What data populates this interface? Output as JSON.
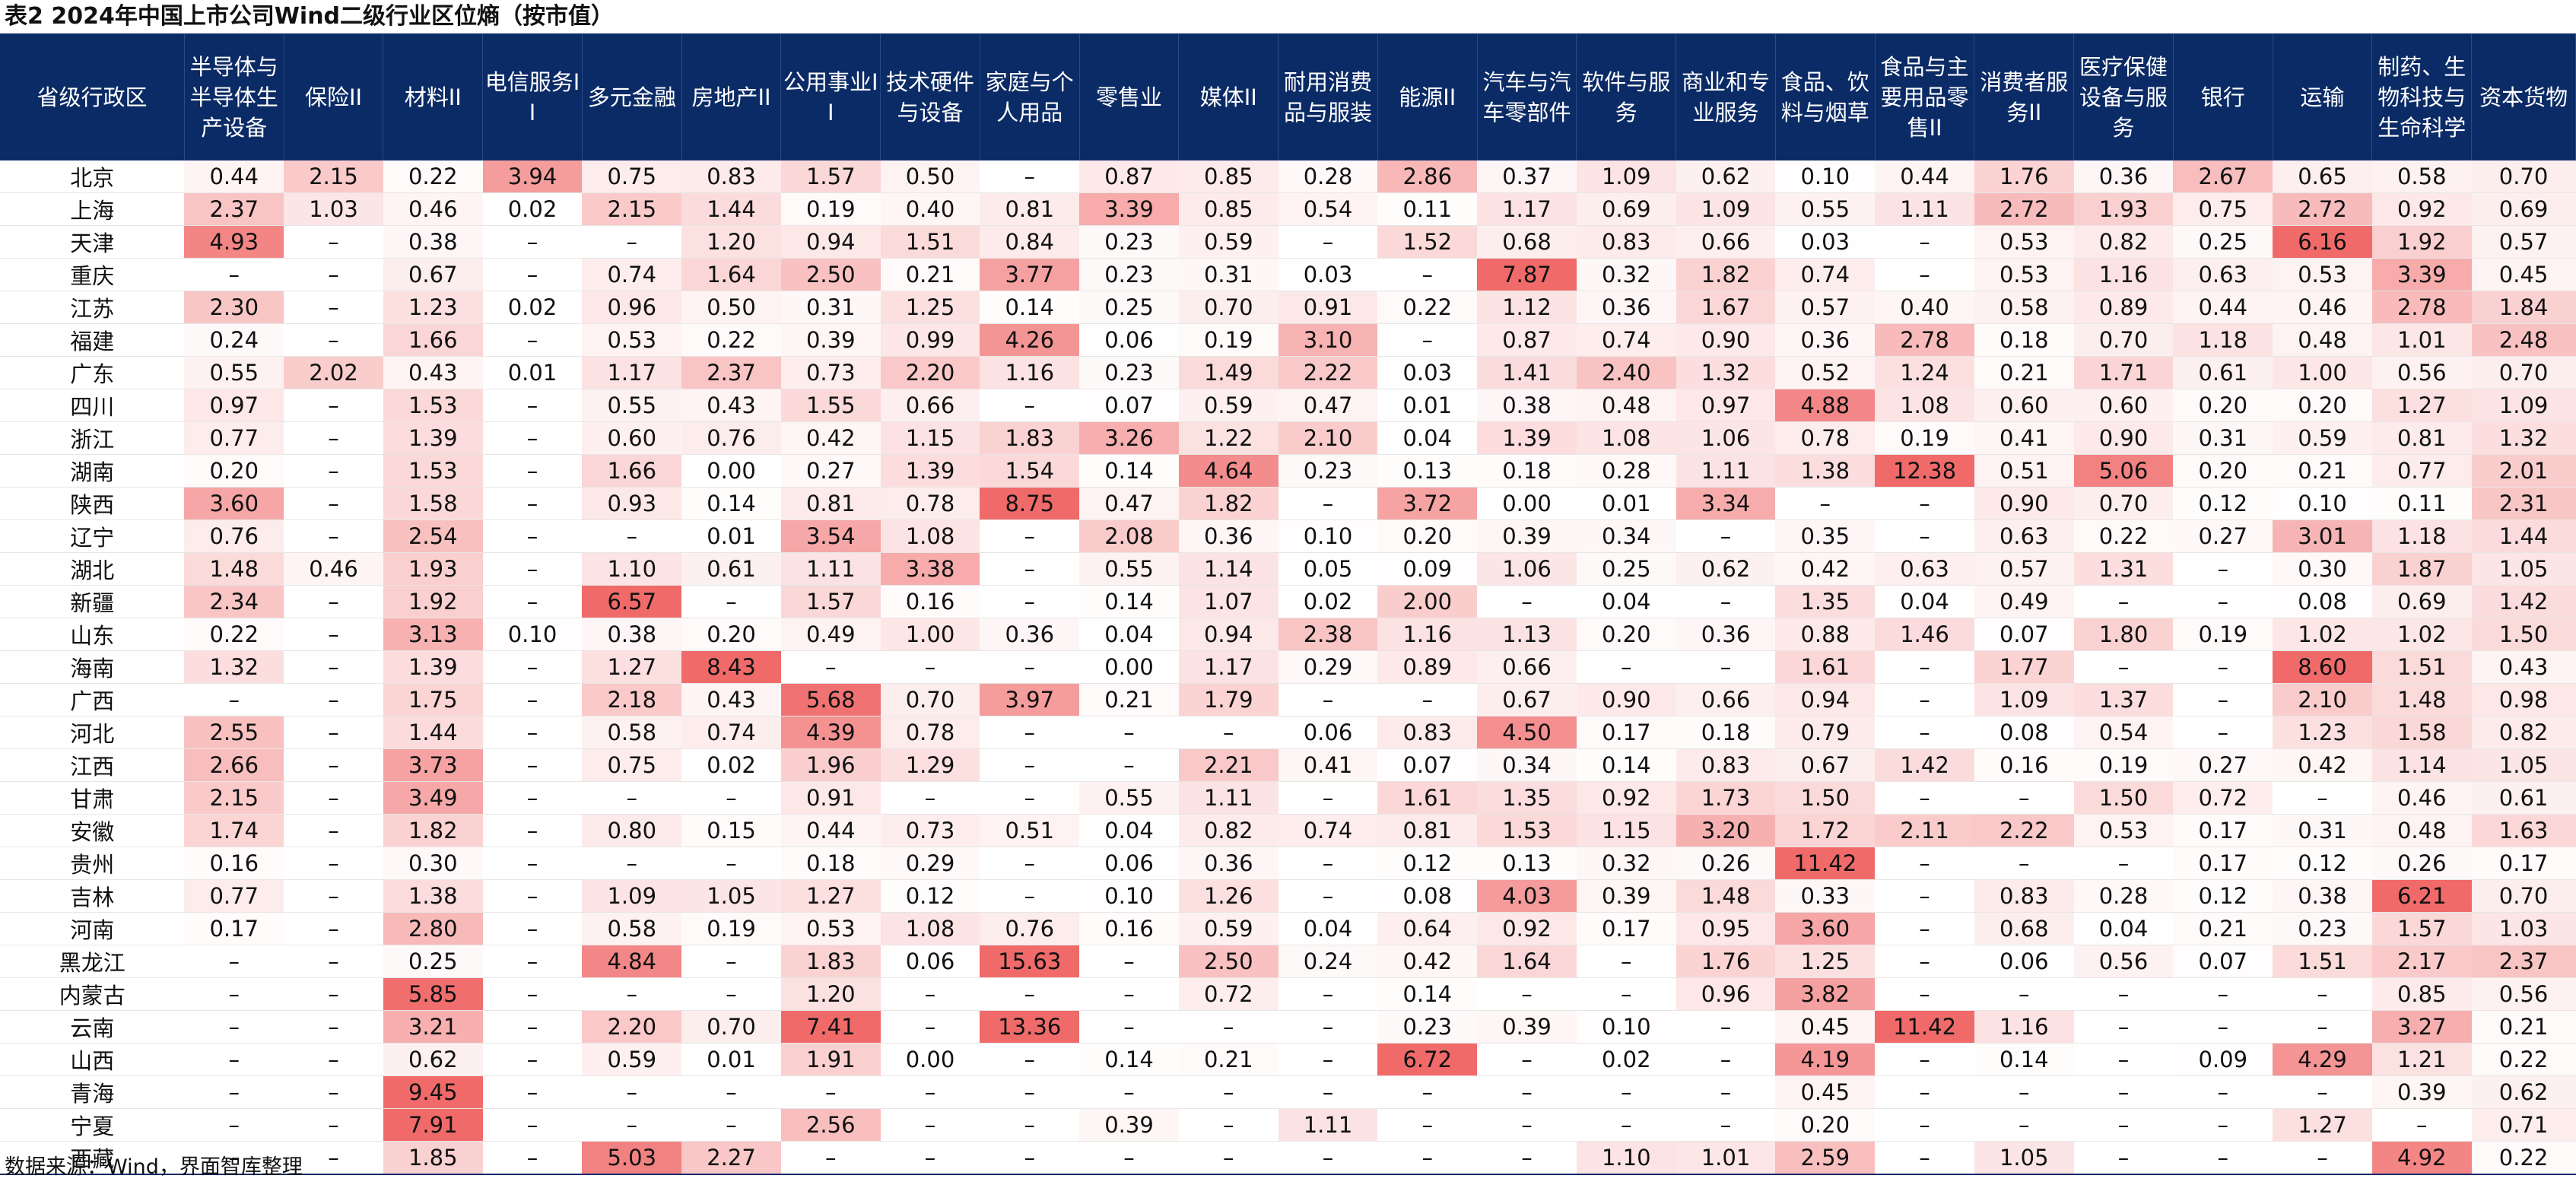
{
  "title": "表2 2024年中国上市公司Wind二级行业区位熵（按市值）",
  "source": "数据来源：Wind，界面智库整理",
  "headers": [
    "省级行政区",
    "半导体与半导体生产设备",
    "保险II",
    "材料II",
    "电信服务II",
    "多元金融",
    "房地产II",
    "公用事业II",
    "技术硬件与设备",
    "家庭与个人用品",
    "零售业",
    "媒体II",
    "耐用消费品与服装",
    "能源II",
    "汽车与汽车零部件",
    "软件与服务",
    "商业和专业服务",
    "食品、饮料与烟草",
    "食品与主要用品零售II",
    "消费者服务II",
    "医疗保健设备与服务",
    "银行",
    "运输",
    "制药、生物科技与生命科学",
    "资本货物"
  ],
  "rows": [
    [
      "北京",
      "0.44",
      "2.15",
      "0.22",
      "3.94",
      "0.75",
      "0.83",
      "1.57",
      "0.50",
      "–",
      "0.87",
      "0.85",
      "0.28",
      "2.86",
      "0.37",
      "1.09",
      "0.62",
      "0.10",
      "0.44",
      "1.76",
      "0.36",
      "2.67",
      "0.65",
      "0.58",
      "0.70"
    ],
    [
      "上海",
      "2.37",
      "1.03",
      "0.46",
      "0.02",
      "2.15",
      "1.44",
      "0.19",
      "0.40",
      "0.81",
      "3.39",
      "0.85",
      "0.54",
      "0.11",
      "1.17",
      "0.69",
      "1.09",
      "0.55",
      "1.11",
      "2.72",
      "1.93",
      "0.75",
      "2.72",
      "0.92",
      "0.69"
    ],
    [
      "天津",
      "4.93",
      "–",
      "0.38",
      "–",
      "–",
      "1.20",
      "0.94",
      "1.51",
      "0.84",
      "0.23",
      "0.59",
      "–",
      "1.52",
      "0.68",
      "0.83",
      "0.66",
      "0.03",
      "–",
      "0.53",
      "0.82",
      "0.25",
      "6.16",
      "1.92",
      "0.57"
    ],
    [
      "重庆",
      "–",
      "–",
      "0.67",
      "–",
      "0.74",
      "1.64",
      "2.50",
      "0.21",
      "3.77",
      "0.23",
      "0.31",
      "0.03",
      "–",
      "7.87",
      "0.32",
      "1.82",
      "0.74",
      "–",
      "0.53",
      "1.16",
      "0.63",
      "0.53",
      "3.39",
      "0.45"
    ],
    [
      "江苏",
      "2.30",
      "–",
      "1.23",
      "0.02",
      "0.96",
      "0.50",
      "0.31",
      "1.25",
      "0.14",
      "0.25",
      "0.70",
      "0.91",
      "0.22",
      "1.12",
      "0.36",
      "1.67",
      "0.57",
      "0.40",
      "0.58",
      "0.89",
      "0.44",
      "0.46",
      "2.78",
      "1.84"
    ],
    [
      "福建",
      "0.24",
      "–",
      "1.66",
      "–",
      "0.53",
      "0.22",
      "0.39",
      "0.99",
      "4.26",
      "0.06",
      "0.19",
      "3.10",
      "–",
      "0.87",
      "0.74",
      "0.90",
      "0.36",
      "2.78",
      "0.18",
      "0.70",
      "1.18",
      "0.48",
      "1.01",
      "2.48"
    ],
    [
      "广东",
      "0.55",
      "2.02",
      "0.43",
      "0.01",
      "1.17",
      "2.37",
      "0.73",
      "2.20",
      "1.16",
      "0.23",
      "1.49",
      "2.22",
      "0.03",
      "1.41",
      "2.40",
      "1.32",
      "0.52",
      "1.24",
      "0.21",
      "1.71",
      "0.61",
      "1.00",
      "0.56",
      "0.70"
    ],
    [
      "四川",
      "0.97",
      "–",
      "1.53",
      "–",
      "0.55",
      "0.43",
      "1.55",
      "0.66",
      "–",
      "0.07",
      "0.59",
      "0.47",
      "0.01",
      "0.38",
      "0.48",
      "0.97",
      "4.88",
      "1.08",
      "0.60",
      "0.60",
      "0.20",
      "0.20",
      "1.27",
      "1.09"
    ],
    [
      "浙江",
      "0.77",
      "–",
      "1.39",
      "–",
      "0.60",
      "0.76",
      "0.42",
      "1.15",
      "1.83",
      "3.26",
      "1.22",
      "2.10",
      "0.04",
      "1.39",
      "1.08",
      "1.06",
      "0.78",
      "0.19",
      "0.41",
      "0.90",
      "0.31",
      "0.59",
      "0.81",
      "1.32"
    ],
    [
      "湖南",
      "0.20",
      "–",
      "1.53",
      "–",
      "1.66",
      "0.00",
      "0.27",
      "1.39",
      "1.54",
      "0.14",
      "4.64",
      "0.23",
      "0.13",
      "0.18",
      "0.28",
      "1.11",
      "1.38",
      "12.38",
      "0.51",
      "5.06",
      "0.20",
      "0.21",
      "0.77",
      "2.01"
    ],
    [
      "陕西",
      "3.60",
      "–",
      "1.58",
      "–",
      "0.93",
      "0.14",
      "0.81",
      "0.78",
      "8.75",
      "0.47",
      "1.82",
      "–",
      "3.72",
      "0.00",
      "0.01",
      "3.34",
      "–",
      "–",
      "0.90",
      "0.70",
      "0.12",
      "0.10",
      "0.11",
      "2.31"
    ],
    [
      "辽宁",
      "0.76",
      "–",
      "2.54",
      "–",
      "–",
      "0.01",
      "3.54",
      "1.08",
      "–",
      "2.08",
      "0.36",
      "0.10",
      "0.20",
      "0.39",
      "0.34",
      "–",
      "0.35",
      "–",
      "0.63",
      "0.22",
      "0.27",
      "3.01",
      "1.18",
      "1.44"
    ],
    [
      "湖北",
      "1.48",
      "0.46",
      "1.93",
      "–",
      "1.10",
      "0.61",
      "1.11",
      "3.38",
      "–",
      "0.55",
      "1.14",
      "0.05",
      "0.09",
      "1.06",
      "0.25",
      "0.62",
      "0.42",
      "0.63",
      "0.57",
      "1.31",
      "–",
      "0.30",
      "1.87",
      "1.05"
    ],
    [
      "新疆",
      "2.34",
      "–",
      "1.92",
      "–",
      "6.57",
      "–",
      "1.57",
      "0.16",
      "–",
      "0.14",
      "1.07",
      "0.02",
      "2.00",
      "–",
      "0.04",
      "–",
      "1.35",
      "0.04",
      "0.49",
      "–",
      "–",
      "0.08",
      "0.69",
      "1.42"
    ],
    [
      "山东",
      "0.22",
      "–",
      "3.13",
      "0.10",
      "0.38",
      "0.20",
      "0.49",
      "1.00",
      "0.36",
      "0.04",
      "0.94",
      "2.38",
      "1.16",
      "1.13",
      "0.20",
      "0.36",
      "0.88",
      "1.46",
      "0.07",
      "1.80",
      "0.19",
      "1.02",
      "1.02",
      "1.50"
    ],
    [
      "海南",
      "1.32",
      "–",
      "1.39",
      "–",
      "1.27",
      "8.43",
      "–",
      "–",
      "–",
      "0.00",
      "1.17",
      "0.29",
      "0.89",
      "0.66",
      "–",
      "–",
      "1.61",
      "–",
      "1.77",
      "–",
      "–",
      "8.60",
      "1.51",
      "0.43"
    ],
    [
      "广西",
      "–",
      "–",
      "1.75",
      "–",
      "2.18",
      "0.43",
      "5.68",
      "0.70",
      "3.97",
      "0.21",
      "1.79",
      "–",
      "–",
      "0.67",
      "0.90",
      "0.66",
      "0.94",
      "–",
      "1.09",
      "1.37",
      "–",
      "2.10",
      "1.48",
      "0.98"
    ],
    [
      "河北",
      "2.55",
      "–",
      "1.44",
      "–",
      "0.58",
      "0.74",
      "4.39",
      "0.78",
      "–",
      "–",
      "–",
      "0.06",
      "0.83",
      "4.50",
      "0.17",
      "0.18",
      "0.79",
      "–",
      "0.08",
      "0.54",
      "–",
      "1.23",
      "1.58",
      "0.82"
    ],
    [
      "江西",
      "2.66",
      "–",
      "3.73",
      "–",
      "0.75",
      "0.02",
      "1.96",
      "1.29",
      "–",
      "–",
      "2.21",
      "0.41",
      "0.07",
      "0.34",
      "0.14",
      "0.83",
      "0.67",
      "1.42",
      "0.16",
      "0.19",
      "0.27",
      "0.42",
      "1.14",
      "1.05"
    ],
    [
      "甘肃",
      "2.15",
      "–",
      "3.49",
      "–",
      "–",
      "–",
      "0.91",
      "–",
      "–",
      "0.55",
      "1.11",
      "–",
      "1.61",
      "1.35",
      "0.92",
      "1.73",
      "1.50",
      "–",
      "–",
      "1.50",
      "0.72",
      "–",
      "0.46",
      "0.61"
    ],
    [
      "安徽",
      "1.74",
      "–",
      "1.82",
      "–",
      "0.80",
      "0.15",
      "0.44",
      "0.73",
      "0.51",
      "0.04",
      "0.82",
      "0.74",
      "0.81",
      "1.53",
      "1.15",
      "3.20",
      "1.72",
      "2.11",
      "2.22",
      "0.53",
      "0.17",
      "0.31",
      "0.48",
      "1.63"
    ],
    [
      "贵州",
      "0.16",
      "–",
      "0.30",
      "–",
      "–",
      "–",
      "0.18",
      "0.29",
      "–",
      "0.06",
      "0.36",
      "–",
      "0.12",
      "0.13",
      "0.32",
      "0.26",
      "11.42",
      "–",
      "–",
      "–",
      "0.17",
      "0.12",
      "0.26",
      "0.17"
    ],
    [
      "吉林",
      "0.77",
      "–",
      "1.38",
      "–",
      "1.09",
      "1.05",
      "1.27",
      "0.12",
      "–",
      "0.10",
      "1.26",
      "–",
      "0.08",
      "4.03",
      "0.39",
      "1.48",
      "0.33",
      "–",
      "0.83",
      "0.28",
      "0.12",
      "0.38",
      "6.21",
      "0.70"
    ],
    [
      "河南",
      "0.17",
      "–",
      "2.80",
      "–",
      "0.58",
      "0.19",
      "0.53",
      "1.08",
      "0.76",
      "0.16",
      "0.59",
      "0.04",
      "0.64",
      "0.92",
      "0.17",
      "0.95",
      "3.60",
      "–",
      "0.68",
      "0.04",
      "0.21",
      "0.23",
      "1.57",
      "1.03"
    ],
    [
      "黑龙江",
      "–",
      "–",
      "0.25",
      "–",
      "4.84",
      "–",
      "1.83",
      "0.06",
      "15.63",
      "–",
      "2.50",
      "0.24",
      "0.42",
      "1.64",
      "–",
      "1.76",
      "1.25",
      "–",
      "0.06",
      "0.56",
      "0.07",
      "1.51",
      "2.17",
      "2.37"
    ],
    [
      "内蒙古",
      "–",
      "–",
      "5.85",
      "–",
      "–",
      "–",
      "1.20",
      "–",
      "–",
      "–",
      "0.72",
      "–",
      "0.14",
      "–",
      "–",
      "0.96",
      "3.82",
      "–",
      "–",
      "–",
      "–",
      "–",
      "0.85",
      "0.56"
    ],
    [
      "云南",
      "–",
      "–",
      "3.21",
      "–",
      "2.20",
      "0.70",
      "7.41",
      "–",
      "13.36",
      "–",
      "–",
      "–",
      "0.23",
      "0.39",
      "0.10",
      "–",
      "0.45",
      "11.42",
      "1.16",
      "–",
      "–",
      "–",
      "3.27",
      "0.21"
    ],
    [
      "山西",
      "–",
      "–",
      "0.62",
      "–",
      "0.59",
      "0.01",
      "1.91",
      "0.00",
      "–",
      "0.14",
      "0.21",
      "–",
      "6.72",
      "–",
      "0.02",
      "–",
      "4.19",
      "–",
      "0.14",
      "–",
      "0.09",
      "4.29",
      "1.21",
      "0.22"
    ],
    [
      "青海",
      "–",
      "–",
      "9.45",
      "–",
      "–",
      "–",
      "–",
      "–",
      "–",
      "–",
      "–",
      "–",
      "–",
      "–",
      "–",
      "–",
      "0.45",
      "–",
      "–",
      "–",
      "–",
      "–",
      "0.39",
      "0.62"
    ],
    [
      "宁夏",
      "–",
      "–",
      "7.91",
      "–",
      "–",
      "–",
      "2.56",
      "–",
      "–",
      "0.39",
      "–",
      "1.11",
      "–",
      "–",
      "–",
      "–",
      "0.20",
      "–",
      "–",
      "–",
      "–",
      "1.27",
      "–",
      "0.71"
    ],
    [
      "西藏",
      "–",
      "–",
      "1.85",
      "–",
      "5.03",
      "2.27",
      "–",
      "–",
      "–",
      "–",
      "–",
      "–",
      "–",
      "–",
      "1.10",
      "1.01",
      "2.59",
      "–",
      "1.05",
      "–",
      "–",
      "–",
      "4.92",
      "0.22"
    ]
  ],
  "colors": {
    "header_bg": "#0b2b66",
    "scale_low": "#ffffff",
    "scale_high": "#f06a6a"
  }
}
